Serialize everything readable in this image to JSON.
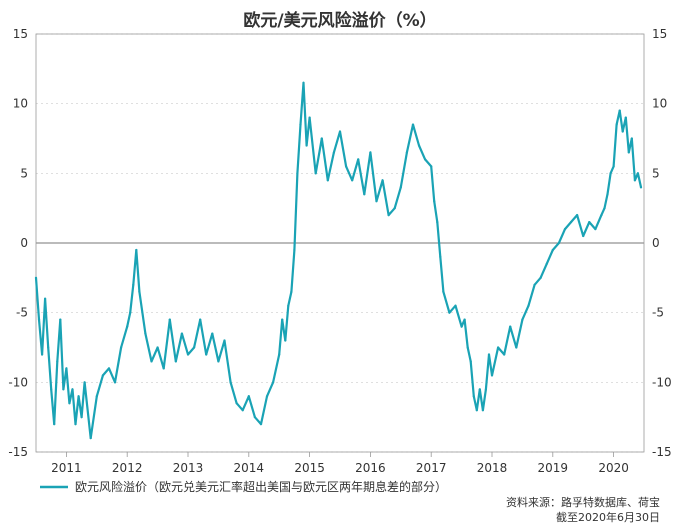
{
  "chart_data": {
    "type": "line",
    "title": "欧元/美元风险溢价（%）",
    "xlabel": "",
    "ylabel": "",
    "ylim": [
      -15,
      15
    ],
    "y_ticks": [
      15,
      10,
      5,
      0,
      -5,
      -10,
      -15
    ],
    "y_tick_labels": [
      "15",
      "10",
      "5",
      "0",
      "-5",
      "-10",
      "-15"
    ],
    "x_range": [
      2010.5,
      2020.5
    ],
    "x_ticks": [
      2011,
      2012,
      2013,
      2014,
      2015,
      2016,
      2017,
      2018,
      2019,
      2020
    ],
    "x_tick_labels": [
      "2011",
      "2012",
      "2013",
      "2014",
      "2015",
      "2016",
      "2017",
      "2018",
      "2019",
      "2020"
    ],
    "zero_line": 0,
    "color": "#1aa3b5",
    "series": [
      {
        "name": "欧元风险溢价（欧元兑美元汇率超出美国与欧元区两年期息差的部分）",
        "x": [
          2010.5,
          2010.55,
          2010.6,
          2010.65,
          2010.7,
          2010.75,
          2010.8,
          2010.85,
          2010.9,
          2010.95,
          2011.0,
          2011.05,
          2011.1,
          2011.15,
          2011.2,
          2011.25,
          2011.3,
          2011.4,
          2011.5,
          2011.6,
          2011.7,
          2011.8,
          2011.9,
          2012.0,
          2012.05,
          2012.1,
          2012.15,
          2012.2,
          2012.3,
          2012.4,
          2012.5,
          2012.6,
          2012.7,
          2012.8,
          2012.9,
          2013.0,
          2013.1,
          2013.2,
          2013.3,
          2013.4,
          2013.5,
          2013.6,
          2013.7,
          2013.8,
          2013.9,
          2014.0,
          2014.1,
          2014.2,
          2014.3,
          2014.4,
          2014.5,
          2014.55,
          2014.6,
          2014.65,
          2014.7,
          2014.75,
          2014.8,
          2014.85,
          2014.9,
          2014.95,
          2015.0,
          2015.1,
          2015.2,
          2015.3,
          2015.4,
          2015.5,
          2015.6,
          2015.7,
          2015.8,
          2015.9,
          2016.0,
          2016.1,
          2016.2,
          2016.3,
          2016.4,
          2016.5,
          2016.6,
          2016.7,
          2016.8,
          2016.9,
          2017.0,
          2017.05,
          2017.1,
          2017.15,
          2017.2,
          2017.3,
          2017.4,
          2017.5,
          2017.55,
          2017.6,
          2017.65,
          2017.7,
          2017.75,
          2017.8,
          2017.85,
          2017.9,
          2017.95,
          2018.0,
          2018.1,
          2018.2,
          2018.3,
          2018.4,
          2018.5,
          2018.6,
          2018.7,
          2018.8,
          2018.9,
          2019.0,
          2019.1,
          2019.2,
          2019.3,
          2019.4,
          2019.5,
          2019.6,
          2019.7,
          2019.8,
          2019.85,
          2019.9,
          2019.95,
          2020.0,
          2020.05,
          2020.1,
          2020.15,
          2020.2,
          2020.25,
          2020.3,
          2020.35,
          2020.4,
          2020.45
        ],
        "values": [
          -2.5,
          -5.5,
          -8.0,
          -4.0,
          -7.5,
          -10.5,
          -13.0,
          -8.5,
          -5.5,
          -10.5,
          -9.0,
          -11.5,
          -10.5,
          -13.0,
          -11.0,
          -12.5,
          -10.0,
          -14.0,
          -11.0,
          -9.5,
          -9.0,
          -10.0,
          -7.5,
          -6.0,
          -5.0,
          -3.0,
          -0.5,
          -3.5,
          -6.5,
          -8.5,
          -7.5,
          -9.0,
          -5.5,
          -8.5,
          -6.5,
          -8.0,
          -7.5,
          -5.5,
          -8.0,
          -6.5,
          -8.5,
          -7.0,
          -10.0,
          -11.5,
          -12.0,
          -11.0,
          -12.5,
          -13.0,
          -11.0,
          -10.0,
          -8.0,
          -5.5,
          -7.0,
          -4.5,
          -3.5,
          -0.5,
          5.0,
          8.5,
          11.5,
          7.0,
          9.0,
          5.0,
          7.5,
          4.5,
          6.5,
          8.0,
          5.5,
          4.5,
          6.0,
          3.5,
          6.5,
          3.0,
          4.5,
          2.0,
          2.5,
          4.0,
          6.5,
          8.5,
          7.0,
          6.0,
          5.5,
          3.0,
          1.5,
          -1.0,
          -3.5,
          -5.0,
          -4.5,
          -6.0,
          -5.5,
          -7.5,
          -8.5,
          -11.0,
          -12.0,
          -10.5,
          -12.0,
          -10.5,
          -8.0,
          -9.5,
          -7.5,
          -8.0,
          -6.0,
          -7.5,
          -5.5,
          -4.5,
          -3.0,
          -2.5,
          -1.5,
          -0.5,
          0.0,
          1.0,
          1.5,
          2.0,
          0.5,
          1.5,
          1.0,
          2.0,
          2.5,
          3.5,
          5.0,
          5.5,
          8.5,
          9.5,
          8.0,
          9.0,
          6.5,
          7.5,
          4.5,
          5.0,
          4.0
        ]
      }
    ],
    "legend": {
      "label": "欧元风险溢价（欧元兑美元汇率超出美国与欧元区两年期息差的部分）",
      "position": "bottom-left"
    },
    "source": "资料来源：路孚特数据库、荷宝",
    "date_note": "截至2020年6月30日"
  }
}
